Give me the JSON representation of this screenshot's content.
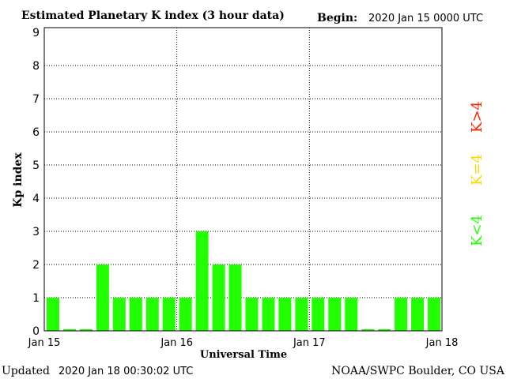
{
  "header": {
    "title": "Estimated Planetary K index (3 hour data)",
    "begin_label": "Begin:",
    "begin_value": "2020 Jan 15 0000 UTC"
  },
  "footer": {
    "updated_label": "Updated",
    "updated_value": "2020 Jan 18 00:30:02 UTC",
    "credit": "NOAA/SWPC Boulder, CO USA"
  },
  "legend": {
    "k_less": "K<4",
    "k_equal": "K=4",
    "k_greater": "K>4"
  },
  "colors": {
    "k_less": "#22ff00",
    "k_equal": "#ffd800",
    "k_greater": "#ff2200",
    "grid": "#000000"
  },
  "chart_data": {
    "type": "bar",
    "xlabel": "Universal Time",
    "ylabel": "Kp index",
    "ylim": [
      0,
      9
    ],
    "yticks": [
      "0",
      "1",
      "2",
      "3",
      "4",
      "5",
      "6",
      "7",
      "8",
      "9"
    ],
    "xticks": [
      "Jan 15",
      "Jan 16",
      "Jan 17",
      "Jan 18"
    ],
    "grid": true,
    "legend_position": "right",
    "values": [
      1,
      0.05,
      0.05,
      2,
      1,
      1,
      1,
      1,
      1,
      3,
      2,
      2,
      1,
      1,
      1,
      1,
      1,
      1,
      1,
      0.05,
      0.05,
      1,
      1,
      1
    ]
  }
}
